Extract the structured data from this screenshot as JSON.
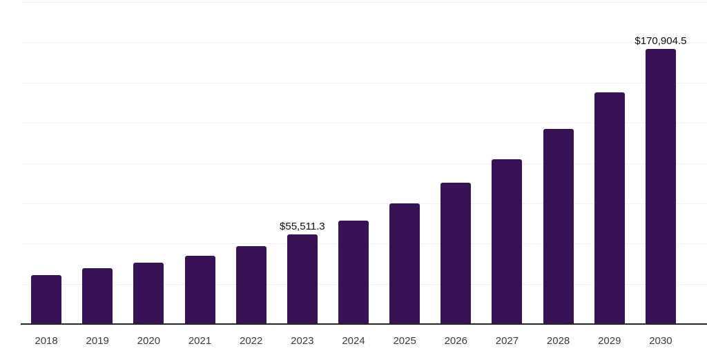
{
  "chart_data": {
    "type": "bar",
    "title": "",
    "categories": [
      "2018",
      "2019",
      "2020",
      "2021",
      "2022",
      "2023",
      "2024",
      "2025",
      "2026",
      "2027",
      "2028",
      "2029",
      "2030"
    ],
    "values": [
      30300,
      34600,
      38000,
      42300,
      48300,
      55511.3,
      64300,
      74800,
      87600,
      102500,
      121300,
      144000,
      170904.5
    ],
    "data_labels": [
      "",
      "",
      "",
      "",
      "",
      "$55,511.3",
      "",
      "",
      "",
      "",
      "",
      "",
      "$170,904.5"
    ],
    "xlabel": "",
    "ylabel": "",
    "ylim": [
      0,
      200000
    ],
    "gridline_step": 25000,
    "grid": "horizontal-only",
    "legend": "none",
    "colors": {
      "bar": "#371254",
      "gridline": "#f2f2f4",
      "axis_line": "#262626",
      "tick_label": "#3d3d3d",
      "data_label": "#0d0d0d",
      "background": "#ffffff"
    }
  }
}
